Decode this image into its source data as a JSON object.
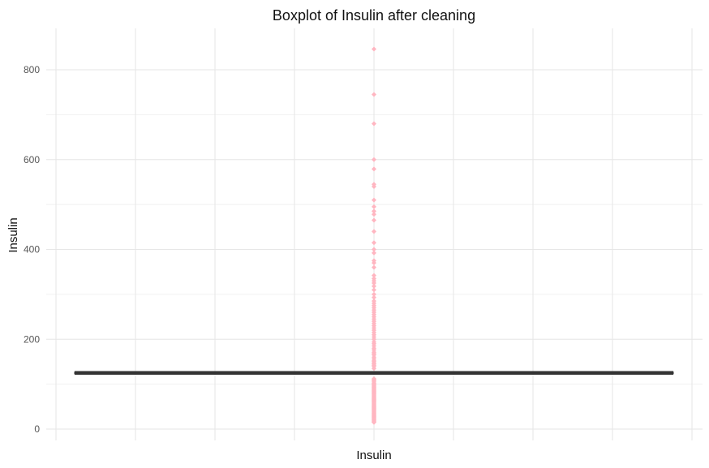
{
  "chart_data": {
    "type": "boxplot",
    "title": "Boxplot of Insulin after cleaning",
    "xlabel": "Insulin",
    "ylabel": "Insulin",
    "ylim": [
      0,
      860
    ],
    "yticks": [
      0,
      200,
      400,
      600,
      800
    ],
    "grid": true,
    "legend": "none",
    "colors": {
      "outlier": "#ffb6c1",
      "median": "#333333",
      "box": "#333333",
      "grid": "#e6e6e6"
    },
    "box": {
      "q1": 125,
      "median": 125,
      "q3": 125,
      "whisker_low": 122,
      "whisker_high": 128
    },
    "outliers_high": [
      846,
      745,
      680,
      600,
      579,
      545,
      540,
      510,
      495,
      485,
      478,
      465,
      440,
      415,
      400,
      392,
      375,
      370,
      360,
      342,
      335,
      330,
      325,
      318,
      310,
      300,
      293,
      285,
      280,
      275,
      270,
      265,
      260,
      255,
      250,
      245,
      240,
      235,
      230,
      225,
      220,
      215,
      210,
      205,
      200,
      194,
      190,
      185,
      180,
      176,
      171,
      168,
      165,
      160,
      156,
      152,
      150,
      146,
      145,
      142,
      140,
      135
    ],
    "outliers_low": [
      112,
      110,
      108,
      105,
      102,
      100,
      98,
      96,
      94,
      92,
      90,
      88,
      86,
      84,
      82,
      80,
      78,
      76,
      74,
      72,
      70,
      68,
      66,
      64,
      62,
      60,
      58,
      56,
      54,
      52,
      50,
      48,
      46,
      44,
      42,
      40,
      38,
      36,
      34,
      32,
      30,
      28,
      26,
      24,
      22,
      20,
      18,
      16,
      15
    ]
  }
}
